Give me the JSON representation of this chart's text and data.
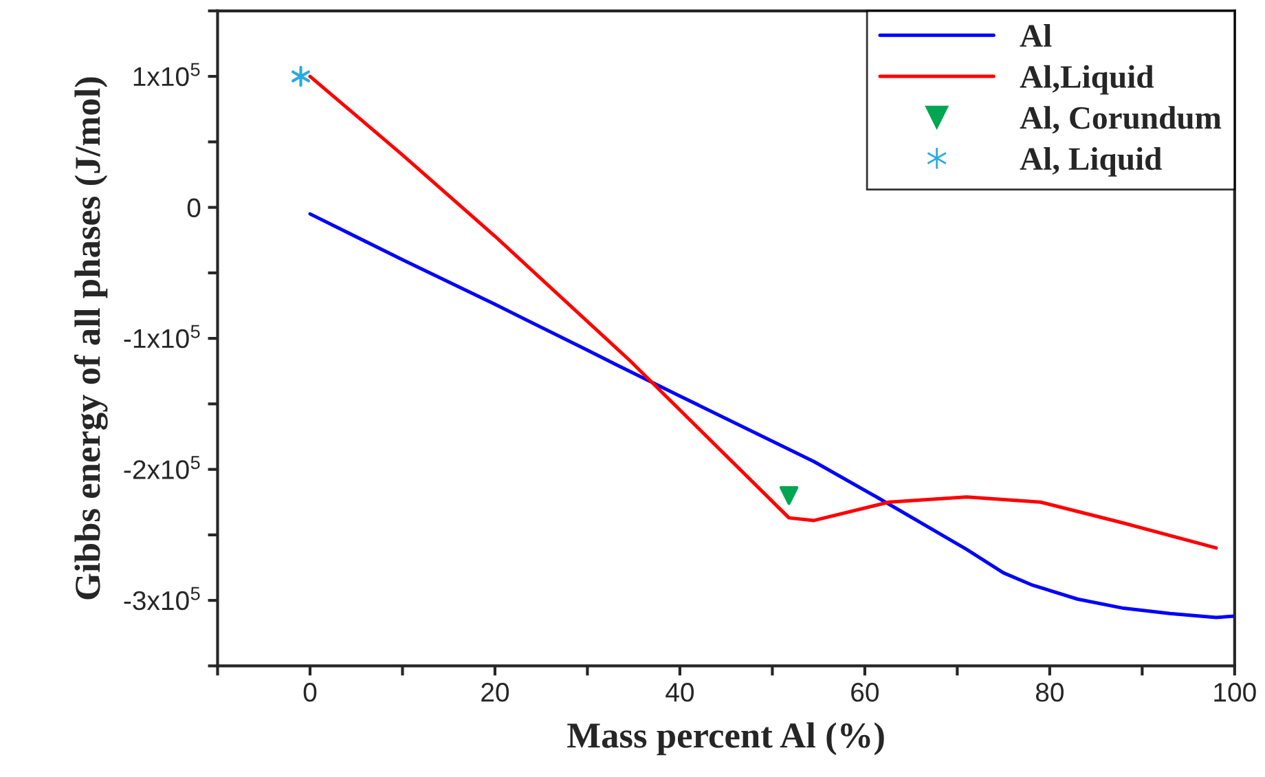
{
  "chart_data": {
    "type": "line",
    "xlabel": "Mass percent Al (%)",
    "ylabel": "Gibbs energy of all phases (J/mol)",
    "xlim": [
      -10,
      100
    ],
    "ylim": [
      -350000,
      150000
    ],
    "xticks": [
      {
        "value": -10,
        "label": null
      },
      {
        "value": 0,
        "label": "0"
      },
      {
        "value": 10,
        "label": null
      },
      {
        "value": 20,
        "label": "20"
      },
      {
        "value": 30,
        "label": null
      },
      {
        "value": 40,
        "label": "40"
      },
      {
        "value": 50,
        "label": null
      },
      {
        "value": 60,
        "label": "60"
      },
      {
        "value": 70,
        "label": null
      },
      {
        "value": 80,
        "label": "80"
      },
      {
        "value": 90,
        "label": null
      },
      {
        "value": 100,
        "label": "100"
      }
    ],
    "yticks": [
      {
        "value": -350000,
        "label": null
      },
      {
        "value": -300000,
        "label": "-3x10$^{5}$"
      },
      {
        "value": -250000,
        "label": null
      },
      {
        "value": -200000,
        "label": "-2x10$^{5}$"
      },
      {
        "value": -150000,
        "label": null
      },
      {
        "value": -100000,
        "label": "-1x10$^{5}$"
      },
      {
        "value": -50000,
        "label": null
      },
      {
        "value": 0,
        "label": "0"
      },
      {
        "value": 50000,
        "label": null
      },
      {
        "value": 100000,
        "label": "1x10$^{5}$"
      },
      {
        "value": 150000,
        "label": null
      }
    ],
    "grid": false,
    "legend": "top right",
    "series": [
      {
        "name": "Al",
        "color": "#0000ff",
        "x": [
          0,
          10,
          20,
          30,
          33.1,
          40,
          54.5,
          61.5,
          71,
          75,
          78,
          83,
          88,
          93,
          98,
          100
        ],
        "values": [
          -5000,
          -40000,
          -74000,
          -109000,
          -120000,
          -144000,
          -194000,
          -222000,
          -261000,
          -279000,
          -288000,
          -299000,
          -306000,
          -310000,
          -313000,
          -312000
        ]
      },
      {
        "name": "Al,Liquid",
        "color": "#ff0000",
        "x": [
          0,
          10,
          20,
          34.6,
          51.8,
          54.5,
          62.6,
          71,
          79,
          88,
          98
        ],
        "values": [
          100000,
          40000,
          -22000,
          -117000,
          -237000,
          -239000,
          -225000,
          -221000,
          -225000,
          -241000,
          -260000
        ]
      },
      {
        "name": "Al, Corundum",
        "color": "#00a651",
        "type": "scatter",
        "marker": "triangle",
        "x": [
          51.8
        ],
        "values": [
          -220000
        ]
      },
      {
        "name": "Al, Liquid",
        "color": "#29abe2",
        "type": "scatter",
        "marker": "cross",
        "x": [
          -1
        ],
        "values": [
          100000
        ]
      }
    ]
  }
}
